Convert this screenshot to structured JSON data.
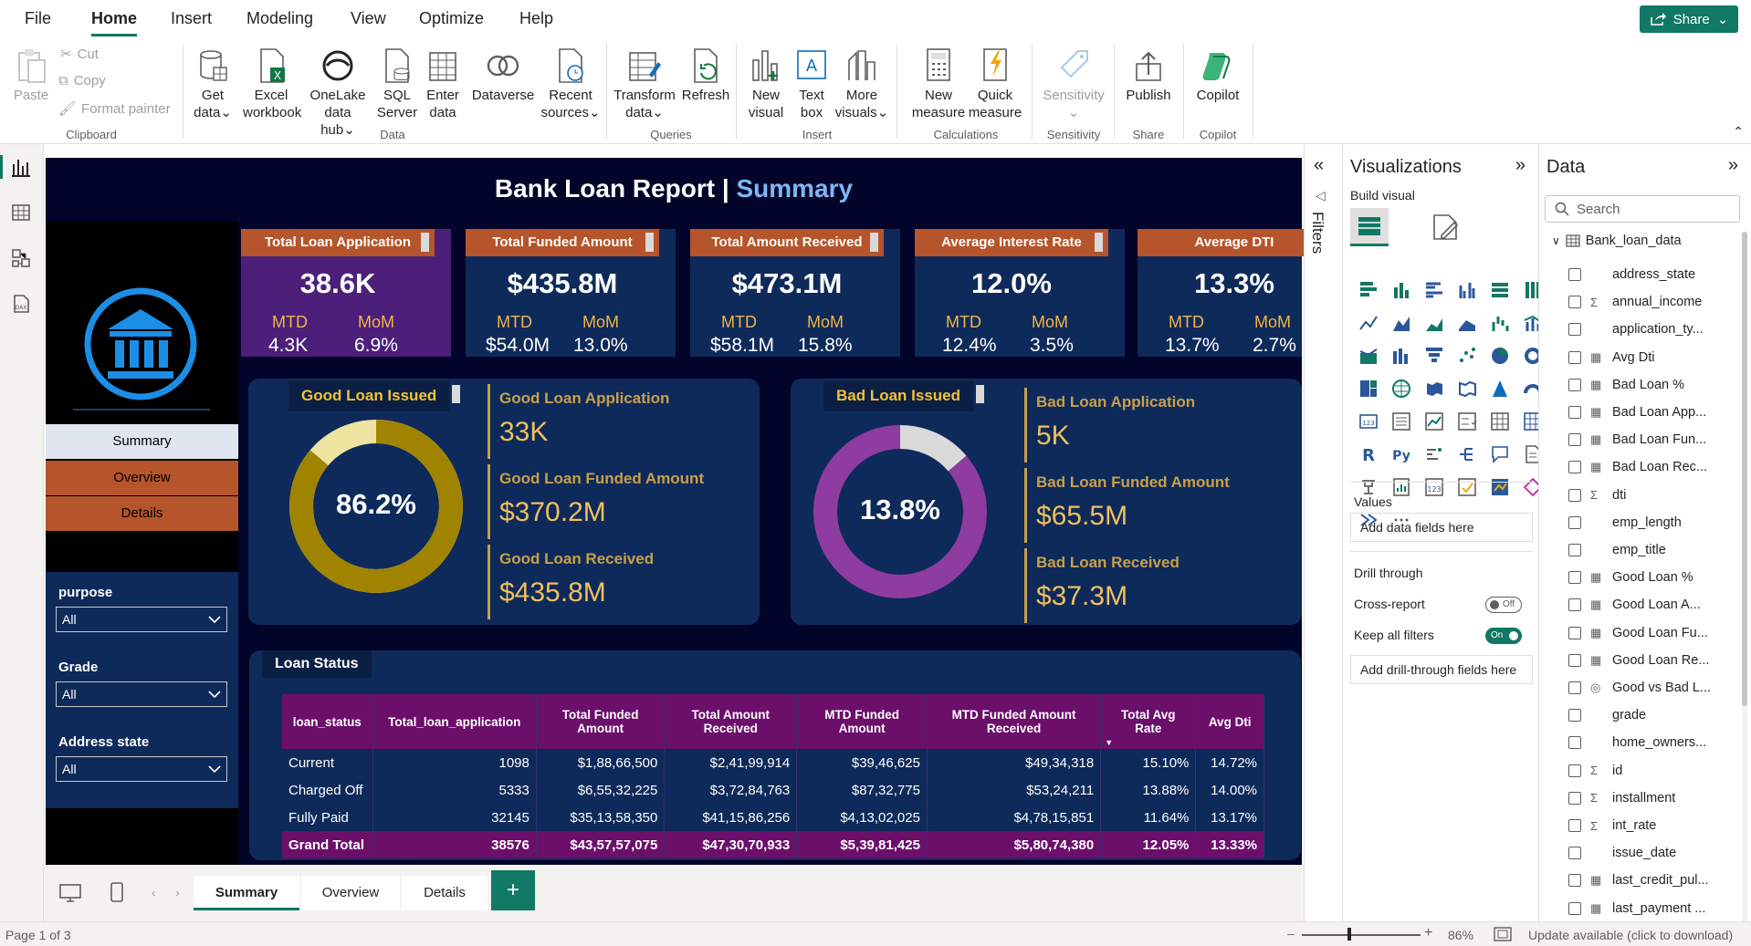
{
  "menu": [
    "File",
    "Home",
    "Insert",
    "Modeling",
    "View",
    "Optimize",
    "Help"
  ],
  "share_label": "Share",
  "ribbon": {
    "clipboard": {
      "paste": "Paste",
      "cut": "Cut",
      "copy": "Copy",
      "format_painter": "Format painter",
      "group": "Clipboard"
    },
    "data": {
      "get_data": [
        "Get",
        "data"
      ],
      "excel": [
        "Excel",
        "workbook"
      ],
      "onelake": [
        "OneLake",
        "data hub"
      ],
      "sql": [
        "SQL",
        "Server"
      ],
      "enter": [
        "Enter",
        "data"
      ],
      "dataverse": "Dataverse",
      "recent": [
        "Recent",
        "sources"
      ],
      "group": "Data"
    },
    "queries": {
      "transform": [
        "Transform",
        "data"
      ],
      "refresh": "Refresh",
      "group": "Queries"
    },
    "insert": {
      "new_visual": [
        "New",
        "visual"
      ],
      "text_box": [
        "Text",
        "box"
      ],
      "more_visuals": [
        "More",
        "visuals"
      ],
      "group": "Insert"
    },
    "calculations": {
      "new_measure": [
        "New",
        "measure"
      ],
      "quick_measure": [
        "Quick",
        "measure"
      ],
      "group": "Calculations"
    },
    "sensitivity": {
      "label": "Sensitivity",
      "group": "Sensitivity"
    },
    "share": {
      "publish": "Publish",
      "group": "Share"
    },
    "copilot": {
      "label": "Copilot",
      "group": "Copilot"
    }
  },
  "report": {
    "title_main": "Bank Loan Report | ",
    "title_accent": "Summary",
    "nav": [
      "Summary",
      "Overview",
      "Details"
    ],
    "slicers": [
      {
        "label": "purpose",
        "value": "All"
      },
      {
        "label": "Grade",
        "value": "All"
      },
      {
        "label": "Address state",
        "value": "All"
      }
    ],
    "kpis": [
      {
        "title": "Total Loan Application",
        "value": "38.6K",
        "mtd_label": "MTD",
        "mom_label": "MoM",
        "mtd": "4.3K",
        "mom": "6.9%"
      },
      {
        "title": "Total Funded Amount",
        "value": "$435.8M",
        "mtd_label": "MTD",
        "mom_label": "MoM",
        "mtd": "$54.0M",
        "mom": "13.0%"
      },
      {
        "title": "Total Amount Received",
        "value": "$473.1M",
        "mtd_label": "MTD",
        "mom_label": "MoM",
        "mtd": "$58.1M",
        "mom": "15.8%"
      },
      {
        "title": "Average Interest Rate",
        "value": "12.0%",
        "mtd_label": "MTD",
        "mom_label": "MoM",
        "mtd": "12.4%",
        "mom": "3.5%"
      },
      {
        "title": "Average DTI",
        "value": "13.3%",
        "mtd_label": "MTD",
        "mom_label": "MoM",
        "mtd": "13.7%",
        "mom": "2.7%"
      }
    ],
    "good": {
      "tag": "Good Loan Issued",
      "pct_label": "86.2%",
      "pct": 86.2,
      "stats": [
        {
          "label": "Good Loan Application",
          "value": "33K"
        },
        {
          "label": "Good Loan Funded Amount",
          "value": "$370.2M"
        },
        {
          "label": "Good Loan Received",
          "value": "$435.8M"
        }
      ]
    },
    "bad": {
      "tag": "Bad Loan Issued",
      "pct_label": "13.8%",
      "pct": 13.8,
      "stats": [
        {
          "label": "Bad Loan Application",
          "value": "5K"
        },
        {
          "label": "Bad Loan Funded Amount",
          "value": "$65.5M"
        },
        {
          "label": "Bad Loan Received",
          "value": "$37.3M"
        }
      ]
    },
    "table": {
      "title": "Loan Status",
      "headers": [
        "loan_status",
        "Total_loan_application",
        "Total Funded Amount",
        "Total Amount Received",
        "MTD Funded Amount",
        "MTD Funded Amount Received",
        "Total Avg Rate",
        "Avg Dti"
      ],
      "rows": [
        [
          "Current",
          "1098",
          "$1,88,66,500",
          "$2,41,99,914",
          "$39,46,625",
          "$49,34,318",
          "15.10%",
          "14.72%"
        ],
        [
          "Charged Off",
          "5333",
          "$6,55,32,225",
          "$3,72,84,763",
          "$87,32,775",
          "$53,24,211",
          "13.88%",
          "14.00%"
        ],
        [
          "Fully Paid",
          "32145",
          "$35,13,58,350",
          "$41,15,86,256",
          "$4,13,02,025",
          "$4,78,15,851",
          "11.64%",
          "13.17%"
        ]
      ],
      "total": [
        "Grand Total",
        "38576",
        "$43,57,57,075",
        "$47,30,70,933",
        "$5,39,81,425",
        "$5,80,74,380",
        "12.05%",
        "13.33%"
      ]
    }
  },
  "filters_label": "Filters",
  "viz_pane": {
    "title": "Visualizations",
    "build_visual": "Build visual",
    "values_label": "Values",
    "values_placeholder": "Add data fields here",
    "drill_title": "Drill through",
    "cross_report": "Cross-report",
    "cross_state": "Off",
    "keep_filters": "Keep all filters",
    "keep_state": "On",
    "drill_placeholder": "Add drill-through fields here"
  },
  "data_pane": {
    "title": "Data",
    "search_placeholder": "Search",
    "table_name": "Bank_loan_data",
    "fields": [
      {
        "name": "address_state",
        "type": ""
      },
      {
        "name": "annual_income",
        "type": "Σ"
      },
      {
        "name": "application_ty...",
        "type": ""
      },
      {
        "name": "Avg Dti",
        "type": "▦"
      },
      {
        "name": "Bad Loan %",
        "type": "▦"
      },
      {
        "name": "Bad Loan App...",
        "type": "▦"
      },
      {
        "name": "Bad Loan Fun...",
        "type": "▦"
      },
      {
        "name": "Bad Loan Rec...",
        "type": "▦"
      },
      {
        "name": "dti",
        "type": "Σ"
      },
      {
        "name": "emp_length",
        "type": ""
      },
      {
        "name": "emp_title",
        "type": ""
      },
      {
        "name": "Good Loan %",
        "type": "▦"
      },
      {
        "name": "Good Loan A...",
        "type": "▦"
      },
      {
        "name": "Good Loan Fu...",
        "type": "▦"
      },
      {
        "name": "Good Loan Re...",
        "type": "▦"
      },
      {
        "name": "Good vs Bad L...",
        "type": "◎"
      },
      {
        "name": "grade",
        "type": ""
      },
      {
        "name": "home_owners...",
        "type": ""
      },
      {
        "name": "id",
        "type": "Σ"
      },
      {
        "name": "installment",
        "type": "Σ"
      },
      {
        "name": "int_rate",
        "type": "Σ"
      },
      {
        "name": "issue_date",
        "type": ""
      },
      {
        "name": "last_credit_pul...",
        "type": "▦"
      },
      {
        "name": "last_payment ...",
        "type": "▦"
      }
    ]
  },
  "pages": [
    "Summary",
    "Overview",
    "Details"
  ],
  "status": {
    "page": "Page 1 of 3",
    "zoom": "86%",
    "update": "Update available (click to download)"
  },
  "colors": {
    "accent": "#117865",
    "canvas": "#03042a",
    "card": "#0e2a5a",
    "orange": "#b6542b",
    "good": "#a08400",
    "bad": "#8e3ca0"
  }
}
